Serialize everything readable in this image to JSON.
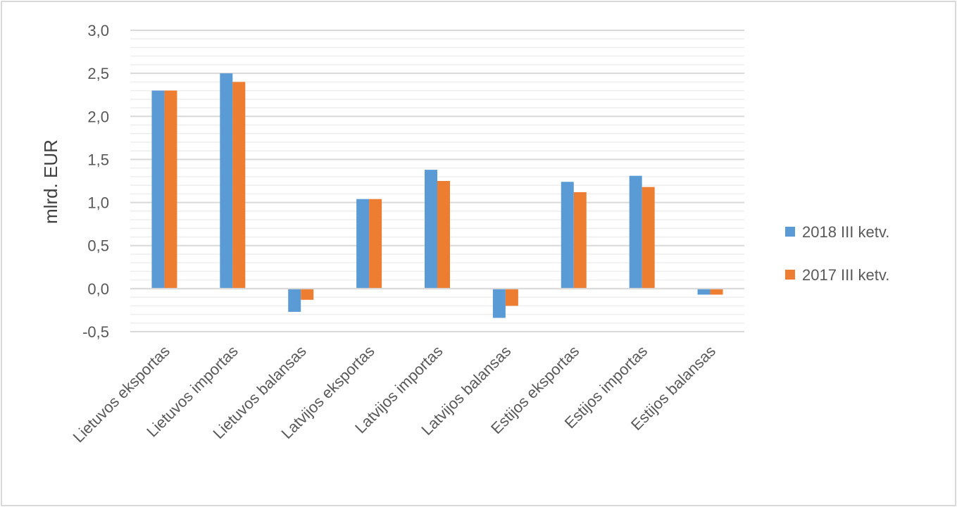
{
  "chart_data": {
    "type": "bar",
    "title": "",
    "xlabel": "",
    "ylabel": "mlrd. EUR",
    "ylim": [
      -0.5,
      3.0
    ],
    "yticks": [
      -0.5,
      0.0,
      0.5,
      1.0,
      1.5,
      2.0,
      2.5,
      3.0
    ],
    "ytick_labels": [
      "-0,5",
      "0,0",
      "0,5",
      "1,0",
      "1,5",
      "2,0",
      "2,5",
      "3,0"
    ],
    "minor_grid_step": 0.1,
    "grid": true,
    "legend_position": "right",
    "categories": [
      "Lietuvos eksportas",
      "Lietuvos importas",
      "Lietuvos balansas",
      "Latvijos eksportas",
      "Latvijos importas",
      "Latvijos balansas",
      "Estijos eksportas",
      "Estijos importas",
      "Estijos balansas"
    ],
    "series": [
      {
        "name": "2018 III ketv.",
        "color": "#5b9bd5",
        "values": [
          2.3,
          2.5,
          -0.27,
          1.04,
          1.38,
          -0.34,
          1.24,
          1.31,
          -0.07
        ]
      },
      {
        "name": "2017 III ketv.",
        "color": "#ed7d31",
        "values": [
          2.3,
          2.4,
          -0.13,
          1.04,
          1.25,
          -0.2,
          1.12,
          1.18,
          -0.07
        ]
      }
    ]
  }
}
